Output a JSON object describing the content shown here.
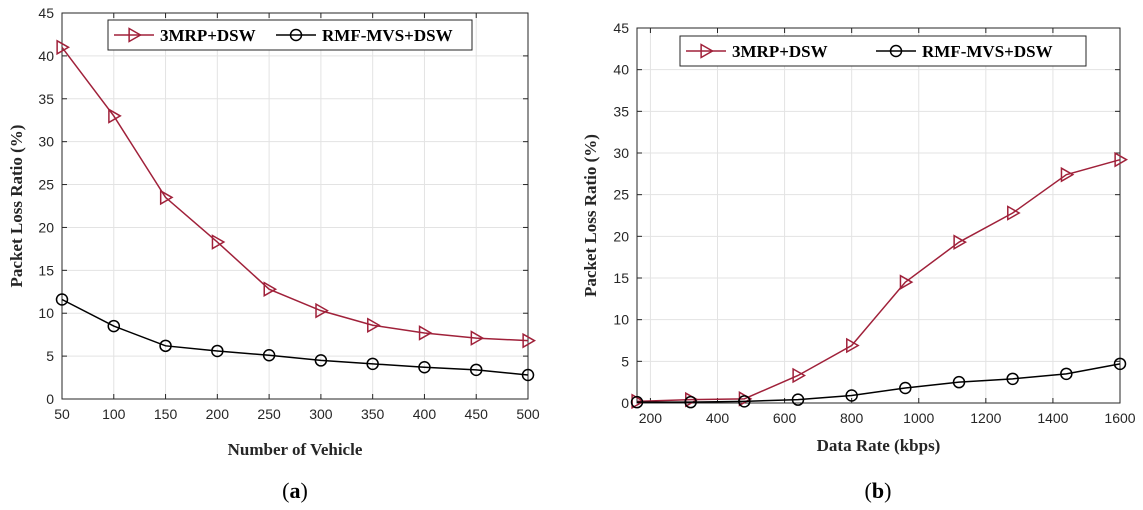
{
  "chart_data": [
    {
      "type": "line",
      "caption_open": "(",
      "caption_letter": "a",
      "caption_close": ")",
      "xlabel": "Number of Vehicle",
      "ylabel": "Packet Loss Ratio (%)",
      "xlim": [
        50,
        500
      ],
      "ylim": [
        0,
        45
      ],
      "xticks": [
        50,
        100,
        150,
        200,
        250,
        300,
        350,
        400,
        450,
        500
      ],
      "yticks": [
        0,
        5,
        10,
        15,
        20,
        25,
        30,
        35,
        40,
        45
      ],
      "grid": true,
      "legend_position": "top-right",
      "series": [
        {
          "name": "3MRP+DSW",
          "color": "#a0213a",
          "marker": "triangle-right",
          "x": [
            50,
            100,
            150,
            200,
            250,
            300,
            350,
            400,
            450,
            500
          ],
          "y": [
            41,
            33,
            23.5,
            18.3,
            12.8,
            10.3,
            8.6,
            7.7,
            7.1,
            6.8
          ]
        },
        {
          "name": "RMF-MVS+DSW",
          "color": "#000000",
          "marker": "circle",
          "x": [
            50,
            100,
            150,
            200,
            250,
            300,
            350,
            400,
            450,
            500
          ],
          "y": [
            11.6,
            8.5,
            6.2,
            5.6,
            5.1,
            4.5,
            4.1,
            3.7,
            3.4,
            2.8
          ]
        }
      ]
    },
    {
      "type": "line",
      "caption_open": "(",
      "caption_letter": "b",
      "caption_close": ")",
      "xlabel": "Data Rate (kbps)",
      "ylabel": "Packet Loss Ratio (%)",
      "xlim": [
        160,
        1600
      ],
      "ylim": [
        0,
        45
      ],
      "xticks": [
        200,
        400,
        600,
        800,
        1000,
        1200,
        1400,
        1600
      ],
      "yticks": [
        0,
        5,
        10,
        15,
        20,
        25,
        30,
        35,
        40,
        45
      ],
      "grid": true,
      "legend_position": "top",
      "series": [
        {
          "name": "3MRP+DSW",
          "color": "#a0213a",
          "marker": "triangle-right",
          "x": [
            160,
            320,
            480,
            640,
            800,
            960,
            1120,
            1280,
            1440,
            1600
          ],
          "y": [
            0.2,
            0.4,
            0.5,
            3.3,
            6.9,
            14.5,
            19.3,
            22.8,
            27.4,
            29.2
          ]
        },
        {
          "name": "RMF-MVS+DSW",
          "color": "#000000",
          "marker": "circle",
          "x": [
            160,
            320,
            480,
            640,
            800,
            960,
            1120,
            1280,
            1440,
            1600
          ],
          "y": [
            0.1,
            0.1,
            0.2,
            0.4,
            0.9,
            1.8,
            2.5,
            2.9,
            3.5,
            4.7
          ]
        }
      ]
    }
  ]
}
